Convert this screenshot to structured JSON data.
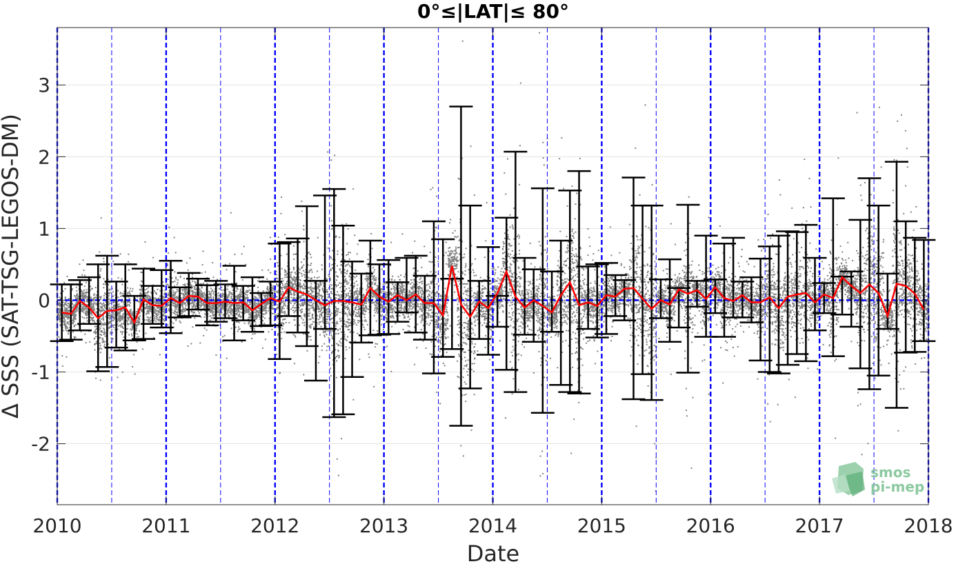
{
  "chart_data": {
    "type": "scatter",
    "title": "0°≤|LAT|≤ 80°",
    "xlabel": "Date",
    "ylabel": "Δ SSS (SAT-TSG-LEGOS-DM)",
    "xlim": [
      2010,
      2018
    ],
    "ylim": [
      -2.85,
      3.8
    ],
    "x_ticks": [
      "2010",
      "2011",
      "2012",
      "2013",
      "2014",
      "2015",
      "2016",
      "2017",
      "2018"
    ],
    "y_ticks": [
      -2,
      -1,
      0,
      1,
      2,
      3
    ],
    "grid": true,
    "reference_lines": {
      "zero_line": 0,
      "year_boundaries": [
        2010,
        2011,
        2012,
        2013,
        2014,
        2015,
        2016,
        2017,
        2018
      ],
      "half_year_marks": [
        2010.5,
        2011.5,
        2012.5,
        2013.5,
        2014.5,
        2015.5,
        2016.5,
        2017.5
      ]
    },
    "series": [
      {
        "type": "errorbar",
        "x": [
          2010.042,
          2010.125,
          2010.208,
          2010.292,
          2010.375,
          2010.458,
          2010.542,
          2010.625,
          2010.708,
          2010.792,
          2010.875,
          2010.958,
          2011.042,
          2011.125,
          2011.208,
          2011.292,
          2011.375,
          2011.458,
          2011.542,
          2011.625,
          2011.708,
          2011.792,
          2011.875,
          2011.958,
          2012.042,
          2012.125,
          2012.208,
          2012.292,
          2012.375,
          2012.458,
          2012.542,
          2012.625,
          2012.708,
          2012.792,
          2012.875,
          2012.958,
          2013.042,
          2013.125,
          2013.208,
          2013.292,
          2013.375,
          2013.458,
          2013.542,
          2013.625,
          2013.708,
          2013.792,
          2013.875,
          2013.958,
          2014.042,
          2014.125,
          2014.208,
          2014.292,
          2014.375,
          2014.458,
          2014.542,
          2014.625,
          2014.708,
          2014.792,
          2014.875,
          2014.958,
          2015.042,
          2015.125,
          2015.208,
          2015.292,
          2015.375,
          2015.458,
          2015.542,
          2015.625,
          2015.708,
          2015.792,
          2015.875,
          2015.958,
          2016.042,
          2016.125,
          2016.208,
          2016.292,
          2016.375,
          2016.458,
          2016.542,
          2016.625,
          2016.708,
          2016.792,
          2016.875,
          2016.958,
          2017.042,
          2017.125,
          2017.208,
          2017.292,
          2017.375,
          2017.458,
          2017.542,
          2017.625,
          2017.708,
          2017.792,
          2017.875,
          2017.958
        ],
        "mean": [
          -0.17,
          -0.19,
          -0.01,
          -0.1,
          -0.25,
          -0.15,
          -0.14,
          -0.1,
          -0.31,
          0.01,
          -0.07,
          -0.08,
          0.03,
          -0.04,
          0.06,
          0.05,
          -0.04,
          -0.04,
          -0.02,
          -0.04,
          -0.03,
          -0.14,
          -0.05,
          0.03,
          -0.02,
          0.18,
          0.12,
          0.08,
          0.0,
          -0.07,
          -0.01,
          -0.01,
          -0.03,
          -0.06,
          0.17,
          0.05,
          -0.02,
          0.07,
          0.0,
          0.08,
          -0.04,
          -0.04,
          -0.21,
          0.48,
          -0.06,
          -0.23,
          -0.02,
          -0.11,
          0.1,
          0.4,
          0.05,
          -0.1,
          0.0,
          -0.08,
          -0.17,
          0.07,
          0.25,
          -0.07,
          -0.03,
          -0.08,
          0.07,
          0.05,
          0.16,
          0.17,
          0.02,
          -0.12,
          0.0,
          -0.06,
          0.15,
          0.09,
          0.14,
          0.02,
          0.18,
          0.03,
          -0.01,
          0.07,
          -0.03,
          -0.03,
          0.04,
          -0.11,
          0.05,
          0.08,
          0.1,
          -0.03,
          0.08,
          0.03,
          0.32,
          0.2,
          0.1,
          0.22,
          0.1,
          -0.22,
          0.23,
          0.2,
          0.09,
          -0.13
        ],
        "upper": [
          0.22,
          0.22,
          0.28,
          0.32,
          0.5,
          0.62,
          0.26,
          0.5,
          0.06,
          0.44,
          0.2,
          0.42,
          0.55,
          0.18,
          0.38,
          0.3,
          0.21,
          0.27,
          0.22,
          0.48,
          0.2,
          0.32,
          0.1,
          0.26,
          0.79,
          0.81,
          0.86,
          1.31,
          0.27,
          1.46,
          1.55,
          1.04,
          0.54,
          0.37,
          0.83,
          0.5,
          0.56,
          0.25,
          0.59,
          0.62,
          0.34,
          1.1,
          0.85,
          0.3,
          2.7,
          1.32,
          0.27,
          0.74,
          0.06,
          1.15,
          2.07,
          0.59,
          0.43,
          1.56,
          0.4,
          0.83,
          1.53,
          1.8,
          0.47,
          0.5,
          0.52,
          0.35,
          0.28,
          1.71,
          1.32,
          1.32,
          0.29,
          0.57,
          0.17,
          1.33,
          0.27,
          0.9,
          0.29,
          0.79,
          0.87,
          0.26,
          0.32,
          0.58,
          0.75,
          0.9,
          0.96,
          0.95,
          1.05,
          0.59,
          0.24,
          1.42,
          0.33,
          0.4,
          1.12,
          1.7,
          1.32,
          0.37,
          1.93,
          1.1,
          0.87,
          0.84
        ],
        "lower": [
          -0.57,
          -0.55,
          -0.42,
          -0.33,
          -0.99,
          -0.93,
          -0.66,
          -0.7,
          -0.56,
          -0.54,
          -0.33,
          -0.38,
          -0.46,
          -0.24,
          -0.22,
          -0.13,
          -0.35,
          -0.3,
          -0.25,
          -0.56,
          -0.28,
          -0.44,
          -0.36,
          -0.35,
          -0.82,
          -0.22,
          -0.45,
          -0.64,
          -1.12,
          -0.4,
          -1.63,
          -1.59,
          -1.07,
          -0.59,
          -0.49,
          -0.48,
          -0.47,
          -0.3,
          -0.17,
          -0.45,
          -0.55,
          -1.02,
          -0.79,
          -0.68,
          -1.75,
          -1.23,
          -0.54,
          -0.76,
          -0.37,
          -0.97,
          -1.28,
          -0.48,
          -0.58,
          -1.57,
          -0.44,
          -1.18,
          -1.28,
          -1.3,
          -0.4,
          -0.52,
          -0.47,
          -0.22,
          -0.28,
          -1.38,
          -1.03,
          -1.39,
          -0.25,
          -0.58,
          -0.38,
          -1.01,
          -0.09,
          -0.51,
          -0.18,
          -0.51,
          -0.24,
          -0.24,
          -0.31,
          -0.84,
          -1.0,
          -1.02,
          -0.9,
          -0.75,
          -0.85,
          -0.42,
          -0.18,
          -0.78,
          -0.2,
          -0.37,
          -0.95,
          -1.24,
          -1.05,
          -0.4,
          -1.5,
          -0.73,
          -0.72,
          -0.57
        ]
      },
      {
        "type": "line",
        "color": "#ff0000",
        "x": "same as errorbar x",
        "y": "same as errorbar mean"
      }
    ],
    "colors": {
      "scatter_points": "#808080",
      "error_bars": "#000000",
      "mean_line": "#ff0000",
      "reference_lines": "#0000ff"
    }
  },
  "logo": {
    "line1": "smos",
    "line2": "pi-mep"
  }
}
